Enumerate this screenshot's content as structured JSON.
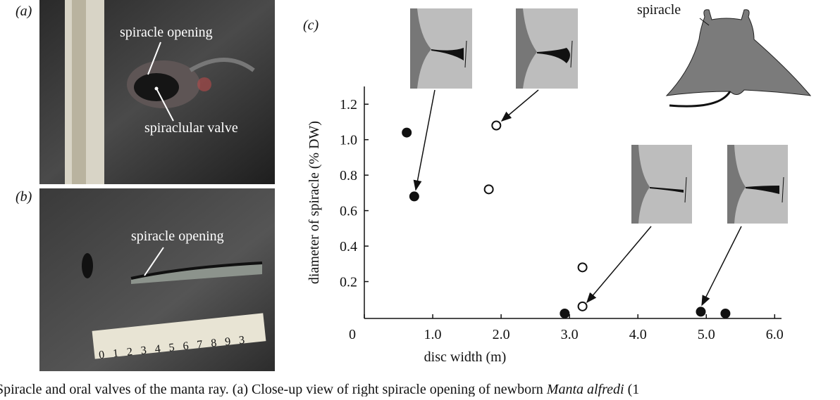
{
  "panels": {
    "a": {
      "label": "(a)",
      "annotations": [
        "spiracle opening",
        "spiraclular valve"
      ]
    },
    "b": {
      "label": "(b)",
      "annotations": [
        "spiracle opening"
      ],
      "ruler": "0 1 2 3 4 5 6 7 8 9 3"
    },
    "c": {
      "label": "(c)",
      "annotations": [
        "spiracle"
      ]
    }
  },
  "caption": {
    "text": "Spiracle and oral valves of the manta ray. (a) Close-up view of right spiracle opening of newborn",
    "species": "Manta alfredi",
    "tail": "(1"
  },
  "chart_data": {
    "type": "scatter",
    "xlabel": "disc width (m)",
    "ylabel": "diameter of spiracle (% DW)",
    "series": [
      {
        "color": "#111111",
        "filled": true,
        "x": [
          0.62,
          0.73,
          2.93,
          4.92,
          5.28
        ],
        "values": [
          1.04,
          0.68,
          0.02,
          0.03,
          0.02
        ]
      },
      {
        "color": "#111111",
        "filled": false,
        "x": [
          1.93,
          1.82,
          3.19,
          3.19
        ],
        "values": [
          1.08,
          0.72,
          0.28,
          0.06
        ]
      }
    ],
    "xlim": [
      0,
      6.1
    ],
    "ylim": [
      0,
      1.3
    ],
    "xticks": [
      0,
      {
        "value": 1,
        "label": "1.0"
      },
      {
        "value": 2,
        "label": "2.0"
      },
      {
        "value": 3,
        "label": "3.0"
      },
      {
        "value": 4,
        "label": "4.0"
      },
      {
        "value": 5,
        "label": "5.0"
      },
      {
        "value": 6,
        "label": "6.0"
      }
    ],
    "yticks": [
      0.2,
      0.4,
      0.6,
      0.8,
      {
        "value": 1,
        "label": "1.0"
      },
      1.2
    ]
  }
}
